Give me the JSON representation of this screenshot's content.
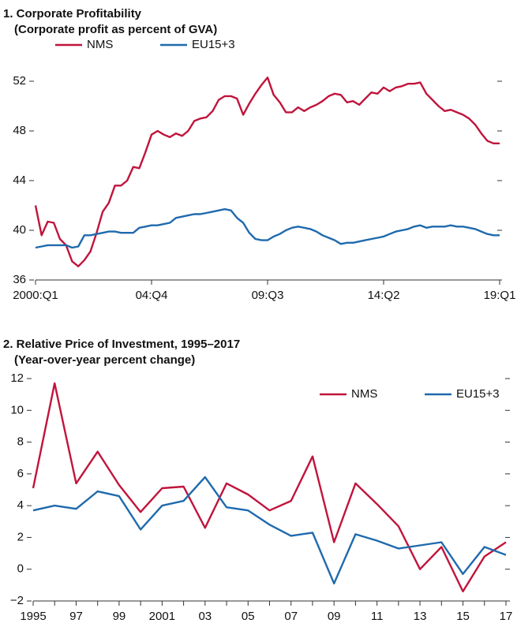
{
  "chart_data": [
    {
      "type": "line",
      "title": "1. Corporate Profitability",
      "subtitle": "(Corporate profit as percent of GVA)",
      "categories": [
        "2000:Q1",
        null,
        null,
        null,
        null,
        null,
        null,
        null,
        null,
        null,
        null,
        null,
        null,
        null,
        null,
        null,
        null,
        null,
        null,
        "04:Q4",
        null,
        null,
        null,
        null,
        null,
        null,
        null,
        null,
        null,
        null,
        null,
        null,
        null,
        null,
        null,
        null,
        null,
        null,
        "09:Q3",
        null,
        null,
        null,
        null,
        null,
        null,
        null,
        null,
        null,
        null,
        null,
        null,
        null,
        null,
        null,
        null,
        null,
        null,
        "14:Q2",
        null,
        null,
        null,
        null,
        null,
        null,
        null,
        null,
        null,
        null,
        null,
        null,
        null,
        null,
        null,
        null,
        null,
        null,
        "19:Q1"
      ],
      "series": [
        {
          "name": "NMS",
          "color": "#c0143c",
          "values": [
            42,
            39.6,
            40.7,
            40.6,
            39.3,
            38.8,
            37.5,
            37.1,
            37.6,
            38.3,
            39.8,
            41.5,
            42.2,
            43.6,
            43.6,
            44.0,
            45.1,
            45.0,
            46.3,
            47.7,
            48.0,
            47.7,
            47.5,
            47.8,
            47.6,
            48.0,
            48.8,
            49.0,
            49.1,
            49.6,
            50.5,
            50.8,
            50.8,
            50.6,
            49.3,
            50.2,
            51.0,
            51.7,
            52.3,
            50.9,
            50.3,
            49.5,
            49.5,
            49.9,
            49.6,
            49.9,
            50.1,
            50.4,
            50.8,
            51.0,
            50.9,
            50.3,
            50.4,
            50.1,
            50.6,
            51.1,
            51.0,
            51.5,
            51.2,
            51.5,
            51.6,
            51.8,
            51.8,
            51.9,
            51.0,
            50.5,
            50.0,
            49.6,
            49.7,
            49.5,
            49.3,
            49.0,
            48.5,
            47.8,
            47.2,
            47.0,
            47.0
          ]
        },
        {
          "name": "EU15+3",
          "color": "#1f6aad",
          "values": [
            38.6,
            38.7,
            38.8,
            38.8,
            38.8,
            38.8,
            38.6,
            38.7,
            39.6,
            39.6,
            39.7,
            39.8,
            39.9,
            39.9,
            39.8,
            39.8,
            39.8,
            40.2,
            40.3,
            40.4,
            40.4,
            40.5,
            40.6,
            41.0,
            41.1,
            41.2,
            41.3,
            41.3,
            41.4,
            41.5,
            41.6,
            41.7,
            41.6,
            41.0,
            40.6,
            39.8,
            39.3,
            39.2,
            39.2,
            39.5,
            39.7,
            40.0,
            40.2,
            40.3,
            40.2,
            40.1,
            39.9,
            39.6,
            39.4,
            39.2,
            38.9,
            39.0,
            39.0,
            39.1,
            39.2,
            39.3,
            39.4,
            39.5,
            39.7,
            39.9,
            40.0,
            40.1,
            40.3,
            40.4,
            40.2,
            40.3,
            40.3,
            40.3,
            40.4,
            40.3,
            40.3,
            40.2,
            40.1,
            39.9,
            39.7,
            39.6,
            39.6
          ]
        }
      ],
      "ylim": [
        36,
        52
      ],
      "yticks": [
        36,
        40,
        44,
        48,
        52
      ],
      "legend": "upper left"
    },
    {
      "type": "line",
      "title": "2. Relative Price of Investment, 1995–2017",
      "subtitle": "(Year-over-year percent change)",
      "categories": [
        "1995",
        null,
        "97",
        null,
        "99",
        null,
        "2001",
        null,
        "03",
        null,
        "05",
        null,
        "07",
        null,
        "09",
        null,
        "11",
        null,
        "13",
        null,
        "15",
        null,
        "17"
      ],
      "series": [
        {
          "name": "NMS",
          "color": "#c0143c",
          "values": [
            5.1,
            11.7,
            5.4,
            7.4,
            5.3,
            3.6,
            5.1,
            5.2,
            2.6,
            5.4,
            4.7,
            3.7,
            4.3,
            7.1,
            1.7,
            5.4,
            4.1,
            2.7,
            0.0,
            1.4,
            -1.4,
            0.8,
            1.7
          ]
        },
        {
          "name": "EU15+3",
          "color": "#1f6aad",
          "values": [
            3.7,
            4.0,
            3.8,
            4.9,
            4.6,
            2.5,
            4.0,
            4.3,
            5.8,
            3.9,
            3.7,
            2.8,
            2.1,
            2.3,
            -0.9,
            2.2,
            1.8,
            1.3,
            1.5,
            1.7,
            -0.3,
            1.4,
            0.9
          ]
        }
      ],
      "ylim": [
        -2,
        12
      ],
      "yticks": [
        {
          "value": -2,
          "label": "−2"
        },
        0,
        2,
        4,
        6,
        8,
        10,
        12
      ],
      "legend": "upper right"
    }
  ]
}
